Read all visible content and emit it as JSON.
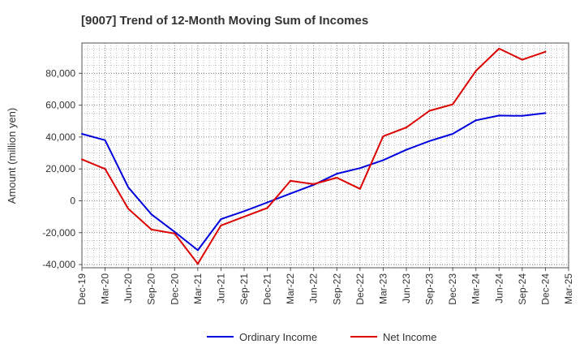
{
  "chart_data": {
    "type": "line",
    "title": "[9007]  Trend of 12-Month Moving Sum of Incomes",
    "xlabel": "",
    "ylabel": "Amount (million yen)",
    "categories": [
      "Dec-19",
      "Mar-20",
      "Jun-20",
      "Sep-20",
      "Dec-20",
      "Mar-21",
      "Jun-21",
      "Sep-21",
      "Dec-21",
      "Mar-22",
      "Jun-22",
      "Sep-22",
      "Dec-22",
      "Mar-23",
      "Jun-23",
      "Sep-23",
      "Dec-23",
      "Mar-24",
      "Jun-24",
      "Sep-24",
      "Dec-24",
      "Mar-25"
    ],
    "x_tick_labels": [
      "Dec-19",
      "Mar-20",
      "Jun-20",
      "Sep-20",
      "Dec-20",
      "Mar-21",
      "Jun-21",
      "Sep-21",
      "Dec-21",
      "Mar-22",
      "Jun-22",
      "Sep-22",
      "Dec-22",
      "Mar-23",
      "Jun-23",
      "Sep-23",
      "Dec-23",
      "Mar-24",
      "Jun-24",
      "Sep-24",
      "Dec-24",
      "Mar-25"
    ],
    "y_ticks": [
      -40000,
      -20000,
      0,
      20000,
      40000,
      60000,
      80000
    ],
    "y_tick_labels": [
      "-40,000",
      "-20,000",
      "0",
      "20,000",
      "40,000",
      "60,000",
      "80,000"
    ],
    "ylim": [
      -42000,
      99000
    ],
    "grid": true,
    "legend_position": "bottom",
    "series": [
      {
        "name": "Ordinary Income",
        "color": "#0000dd",
        "values": [
          42000,
          38000,
          8500,
          -8500,
          -19500,
          -31000,
          -11500,
          -6500,
          -1000,
          4500,
          10000,
          17000,
          20500,
          25500,
          32000,
          37500,
          42000,
          50500,
          53500,
          53300,
          55000,
          null
        ]
      },
      {
        "name": "Net Income",
        "color": "#dd0000",
        "values": [
          26000,
          20000,
          -5000,
          -18000,
          -20500,
          -39500,
          -15500,
          -10000,
          -4500,
          12500,
          10500,
          14500,
          7500,
          40500,
          46000,
          56500,
          60500,
          81500,
          95500,
          88500,
          93500,
          null
        ]
      }
    ]
  }
}
